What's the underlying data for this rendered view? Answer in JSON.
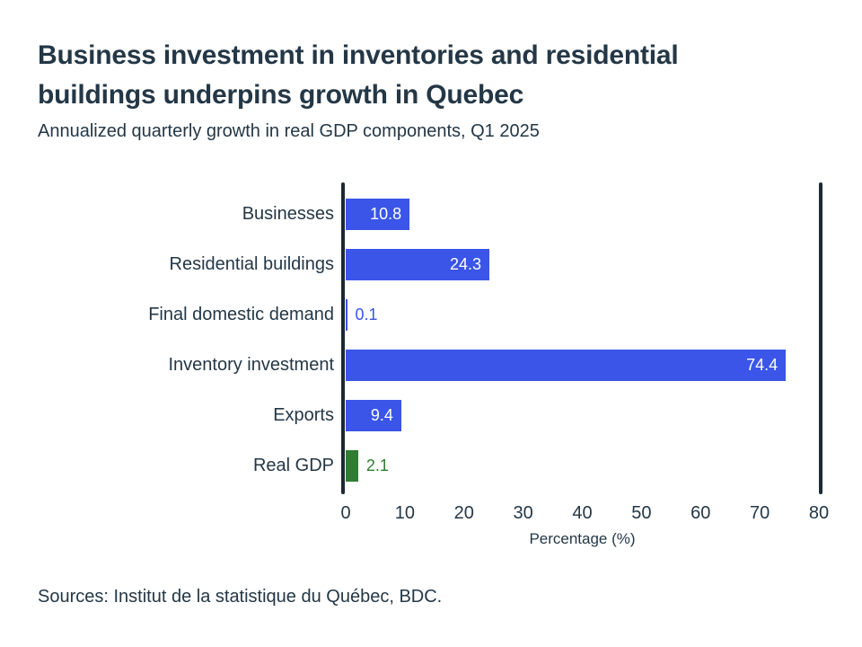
{
  "chart_data": {
    "type": "bar",
    "orientation": "horizontal",
    "title": "Business investment in inventories and residential\nbuildings underpins growth in Quebec",
    "subtitle": "Annualized quarterly growth in real GDP components, Q1 2025",
    "categories": [
      "Businesses",
      "Residential buildings",
      "Final domestic demand",
      "Inventory investment",
      "Exports",
      "Real GDP"
    ],
    "values": [
      10.8,
      24.3,
      0.1,
      74.4,
      9.4,
      2.1
    ],
    "bar_colors": [
      "#3a55e8",
      "#3a55e8",
      "#3a55e8",
      "#3a55e8",
      "#3a55e8",
      "#2e7d33"
    ],
    "xlabel": "Percentage (%)",
    "xlim": [
      0,
      80
    ],
    "xticks": [
      0,
      10,
      20,
      30,
      40,
      50,
      60,
      70,
      80
    ],
    "grid": false,
    "legend": "none",
    "source": "Sources: Institut de la statistique du Québec, BDC."
  },
  "colors": {
    "bar_blue": "#3a55e8",
    "bar_green": "#2e7d33",
    "text_dark": "#243746",
    "axis_line": "#1b2a35",
    "value_label_inside": "#ffffff",
    "background": "#ffffff"
  }
}
